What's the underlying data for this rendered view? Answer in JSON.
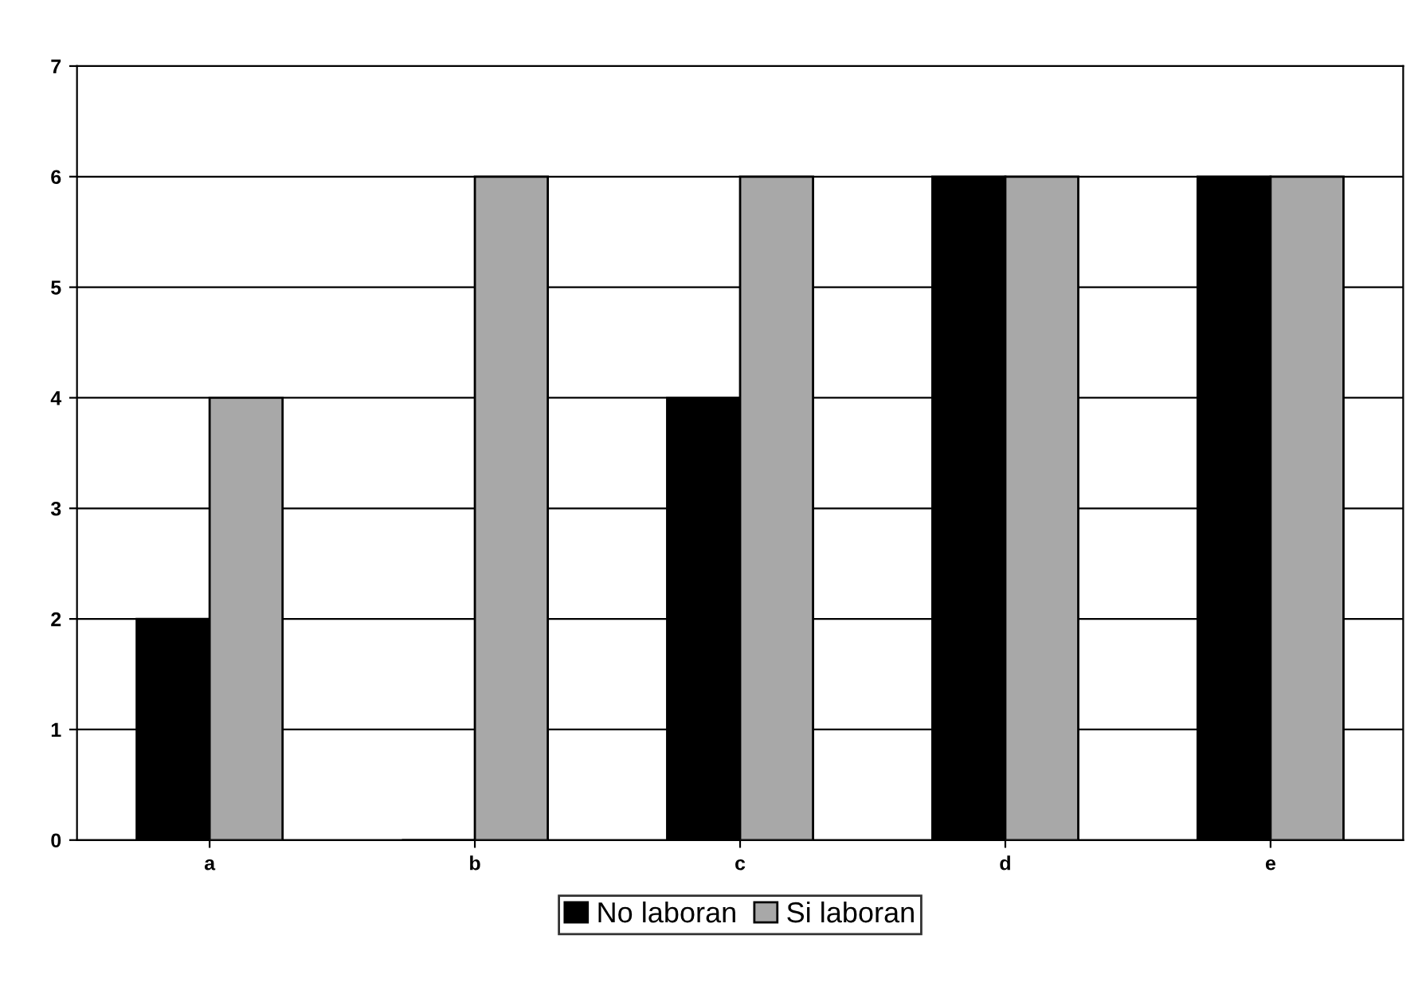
{
  "chart_data": {
    "type": "bar",
    "categories": [
      "a",
      "b",
      "c",
      "d",
      "e"
    ],
    "series": [
      {
        "name": "No laboran",
        "color": "#000000",
        "values": [
          2,
          0,
          4,
          6,
          6
        ]
      },
      {
        "name": "Si laboran",
        "color": "#a8a8a8",
        "values": [
          4,
          6,
          6,
          6,
          6
        ]
      }
    ],
    "ylim": [
      0,
      7
    ],
    "yticks": [
      0,
      1,
      2,
      3,
      4,
      5,
      6,
      7
    ],
    "grid": "y",
    "legend": "bottom"
  }
}
